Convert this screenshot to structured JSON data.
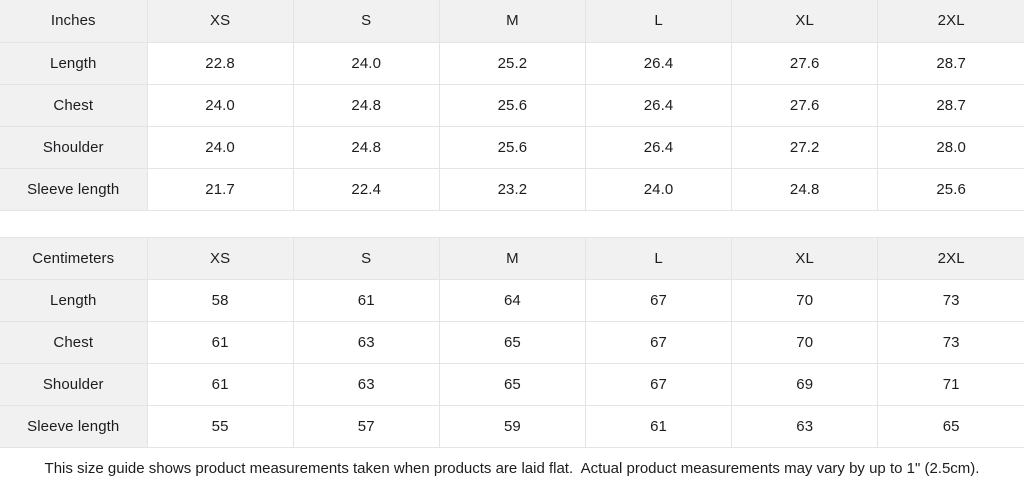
{
  "tables": [
    {
      "unit_label": "Inches",
      "sizes": [
        "XS",
        "S",
        "M",
        "L",
        "XL",
        "2XL"
      ],
      "rows": [
        {
          "label": "Length",
          "values": [
            "22.8",
            "24.0",
            "25.2",
            "26.4",
            "27.6",
            "28.7"
          ]
        },
        {
          "label": "Chest",
          "values": [
            "24.0",
            "24.8",
            "25.6",
            "26.4",
            "27.6",
            "28.7"
          ]
        },
        {
          "label": "Shoulder",
          "values": [
            "24.0",
            "24.8",
            "25.6",
            "26.4",
            "27.2",
            "28.0"
          ]
        },
        {
          "label": "Sleeve length",
          "values": [
            "21.7",
            "22.4",
            "23.2",
            "24.0",
            "24.8",
            "25.6"
          ]
        }
      ]
    },
    {
      "unit_label": "Centimeters",
      "sizes": [
        "XS",
        "S",
        "M",
        "L",
        "XL",
        "2XL"
      ],
      "rows": [
        {
          "label": "Length",
          "values": [
            "58",
            "61",
            "64",
            "67",
            "70",
            "73"
          ]
        },
        {
          "label": "Chest",
          "values": [
            "61",
            "63",
            "65",
            "67",
            "70",
            "73"
          ]
        },
        {
          "label": "Shoulder",
          "values": [
            "61",
            "63",
            "65",
            "67",
            "69",
            "71"
          ]
        },
        {
          "label": "Sleeve length",
          "values": [
            "55",
            "57",
            "59",
            "61",
            "63",
            "65"
          ]
        }
      ]
    }
  ],
  "footer": {
    "note": "This size guide shows product measurements taken when products are laid flat.  Actual product measurements may vary by up to 1\" (2.5cm)."
  },
  "colors": {
    "header_bg": "#f1f1f2",
    "cell_bg": "#ffffff",
    "border": "#e4e4e4",
    "text": "#1d1d1f"
  }
}
